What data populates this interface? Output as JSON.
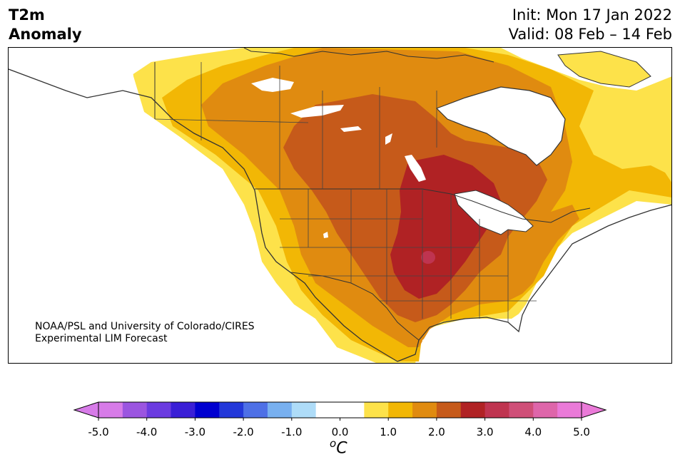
{
  "title": {
    "variable_line1": "T2m",
    "variable_line2": "Anomaly",
    "init": "Init: Mon 17 Jan 2022",
    "valid": "Valid: 08 Feb – 14 Feb"
  },
  "credit": {
    "line1": "NOAA/PSL and University of Colorado/CIRES",
    "line2": "Experimental LIM Forecast"
  },
  "colorbar": {
    "unit_symbol": "C",
    "unit_degree": "o",
    "tick_labels": [
      "-5.0",
      "-4.0",
      "-3.0",
      "-2.0",
      "-1.0",
      "0.0",
      "1.0",
      "2.0",
      "3.0",
      "4.0",
      "5.0"
    ],
    "colors": [
      "#d77be8",
      "#9b55e0",
      "#6b3be0",
      "#3a1fd6",
      "#0000d0",
      "#2338d9",
      "#4e70e6",
      "#78b0f0",
      "#aedcf8",
      "#ffffff",
      "#ffffff",
      "#fde24a",
      "#f2b705",
      "#e08b10",
      "#c65a1a",
      "#b02224",
      "#bf3450",
      "#cf4f78",
      "#de66aa",
      "#ea7ad8"
    ],
    "min_arrow_color": "#d77be8",
    "max_arrow_color": "#ea7ad8"
  },
  "map": {
    "region": "North America",
    "levels": {
      "plus_0_5": "#fde24a",
      "plus_1_0": "#f2b705",
      "plus_1_5": "#e08b10",
      "plus_2_0": "#c65a1a",
      "plus_2_5": "#b02224",
      "plus_3_0": "#bf3450"
    }
  }
}
